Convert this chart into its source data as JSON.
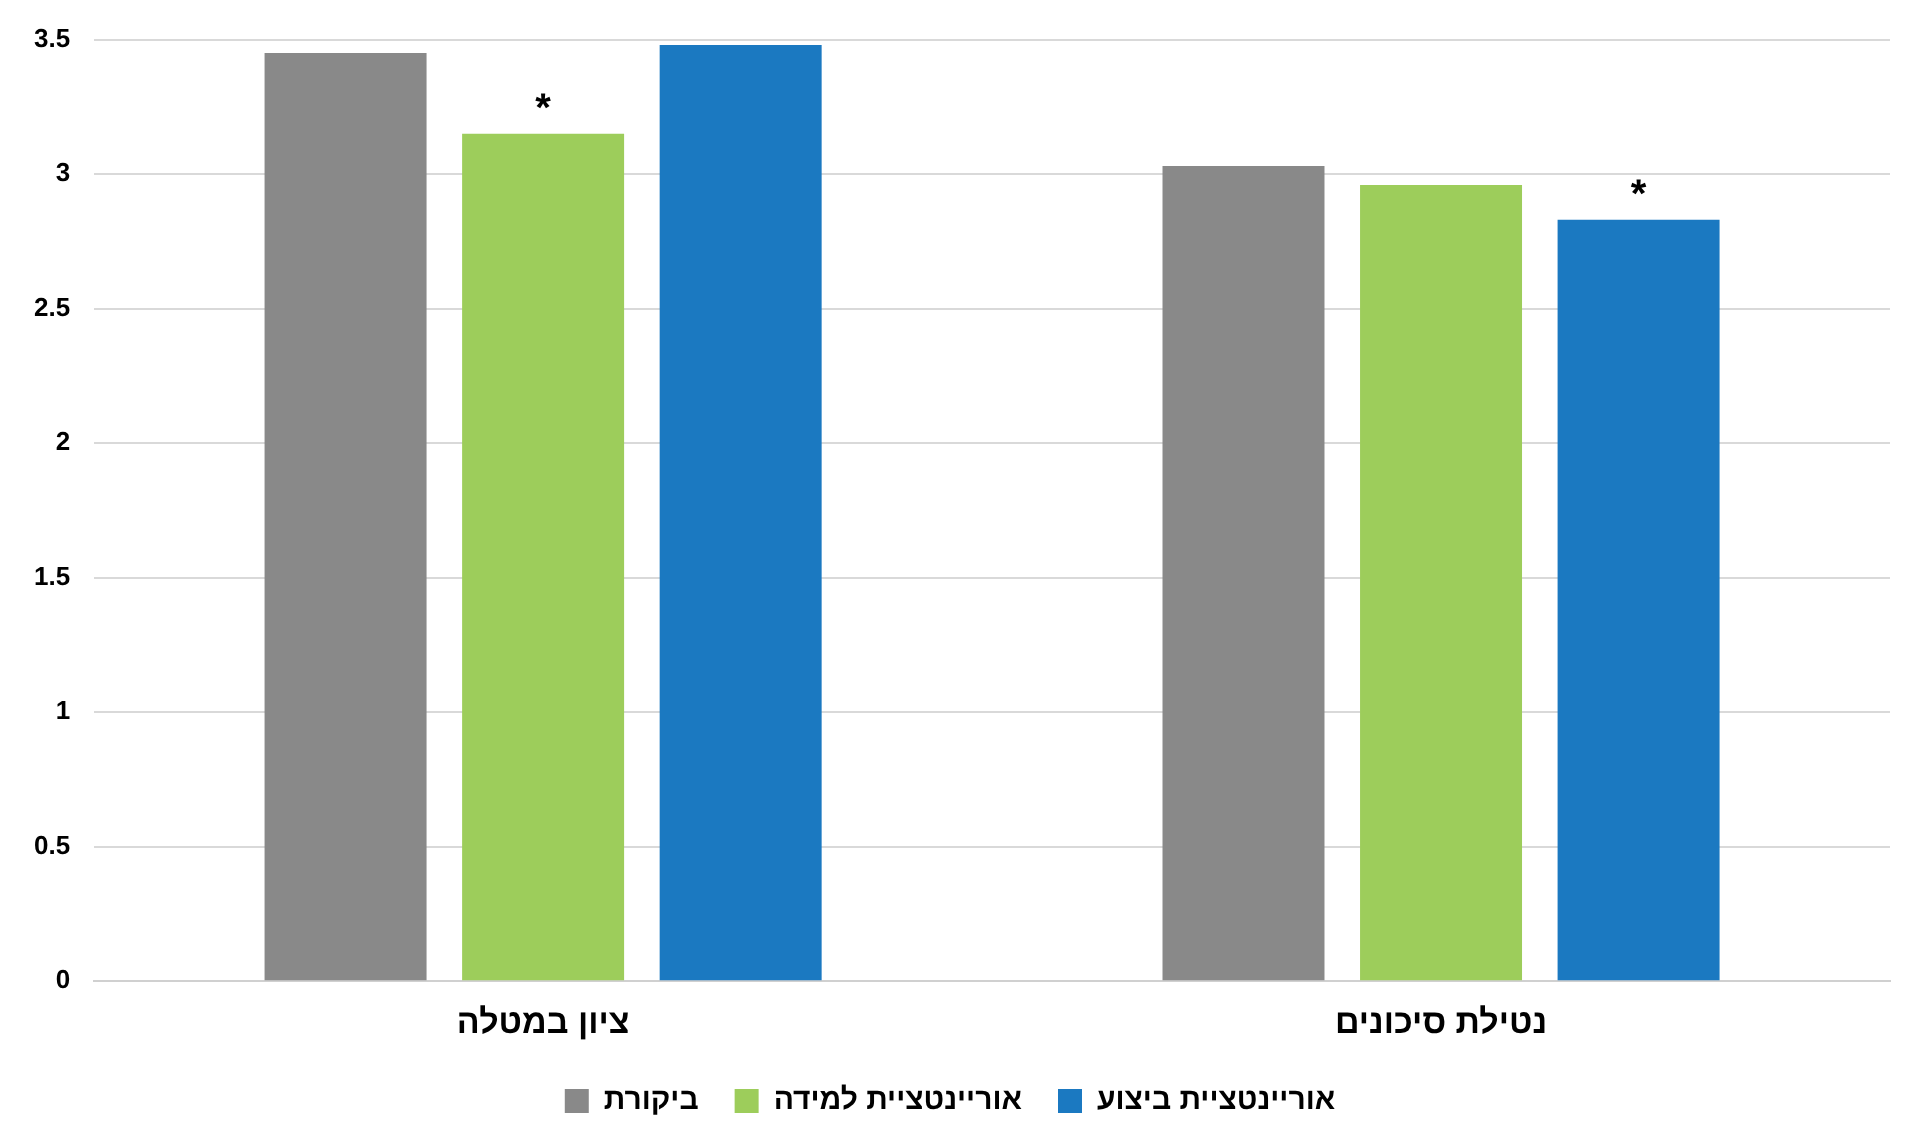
{
  "chart_data": {
    "type": "bar",
    "categories": [
      "ציון במטלה",
      "נטילת סיכונים"
    ],
    "series": [
      {
        "name": "ביקורת",
        "color": "#898989",
        "values": [
          3.45,
          3.03
        ]
      },
      {
        "name": "אוריינטציית למידה",
        "color": "#9dcd5b",
        "values": [
          3.15,
          2.96
        ],
        "value_labels": [
          "*",
          null
        ]
      },
      {
        "name": "אוריינטציית ביצוע",
        "color": "#1b79c1",
        "values": [
          3.48,
          2.83
        ],
        "value_labels": [
          null,
          "*"
        ]
      }
    ],
    "ylim": [
      0,
      3.5
    ],
    "yticks": [
      0,
      0.5,
      1,
      1.5,
      2,
      2.5,
      3,
      3.5
    ],
    "grid": "y",
    "legend": "bottom"
  }
}
